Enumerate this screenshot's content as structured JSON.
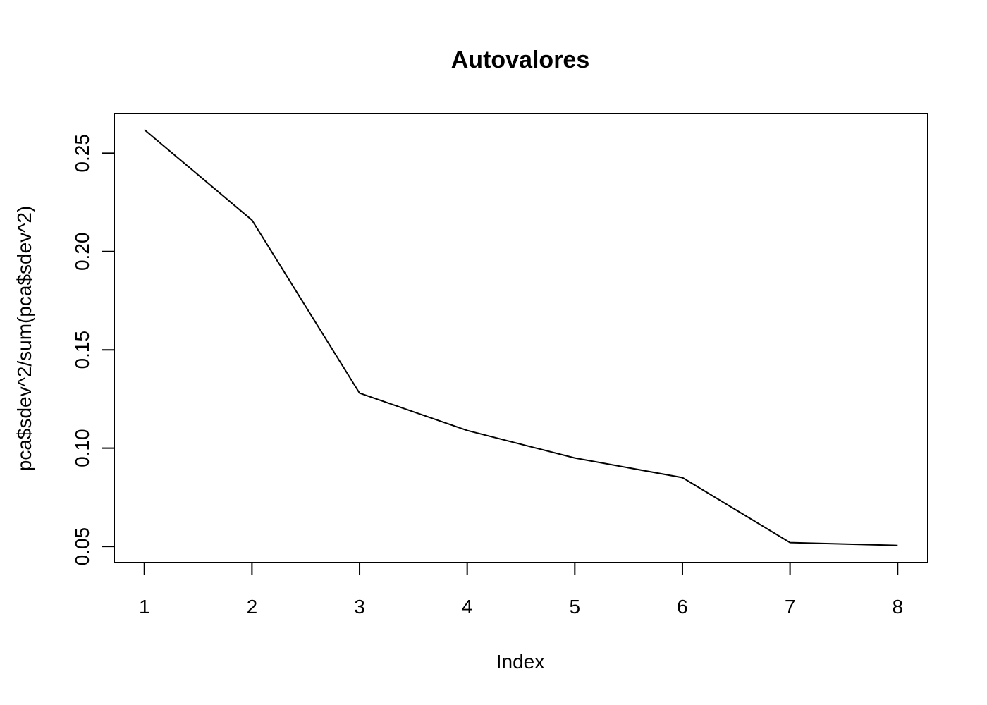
{
  "chart_data": {
    "type": "line",
    "title": "Autovalores",
    "xlabel": "Index",
    "ylabel": "pca$sdev^2/sum(pca$sdev^2)",
    "x": [
      1,
      2,
      3,
      4,
      5,
      6,
      7,
      8
    ],
    "series": [
      {
        "values": [
          0.262,
          0.216,
          0.128,
          0.109,
          0.095,
          0.085,
          0.052,
          0.0505
        ]
      }
    ],
    "x_ticks": [
      1,
      2,
      3,
      4,
      5,
      6,
      7,
      8
    ],
    "y_ticks": [
      "0.05",
      "0.10",
      "0.15",
      "0.20",
      "0.25"
    ],
    "xlim": [
      0.72,
      8.28
    ],
    "ylim": [
      0.0418,
      0.2702
    ],
    "grid": false,
    "line_color": "#000000"
  }
}
